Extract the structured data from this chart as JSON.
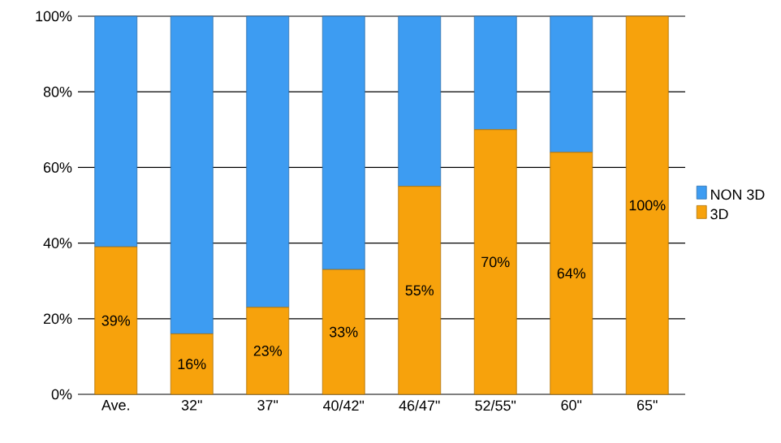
{
  "chart_data": {
    "type": "bar",
    "stacked": true,
    "categories": [
      "Ave.",
      "32\"",
      "37\"",
      "40/42\"",
      "46/47\"",
      "52/55\"",
      "60\"",
      "65\""
    ],
    "series": [
      {
        "name": "3D",
        "color": "#f7a20c",
        "values": [
          39,
          16,
          23,
          33,
          55,
          70,
          64,
          100
        ],
        "value_labels": [
          "39%",
          "16%",
          "23%",
          "33%",
          "55%",
          "70%",
          "64%",
          "100%"
        ]
      },
      {
        "name": "NON 3D",
        "color": "#3d9cf2",
        "values": [
          61,
          84,
          77,
          67,
          45,
          30,
          36,
          0
        ]
      }
    ],
    "ylim": [
      0,
      100
    ],
    "yticks": [
      {
        "value": 0,
        "label": "0%"
      },
      {
        "value": 20,
        "label": "20%"
      },
      {
        "value": 40,
        "label": "40%"
      },
      {
        "value": 60,
        "label": "60%"
      },
      {
        "value": 80,
        "label": "80%"
      },
      {
        "value": 100,
        "label": "100%"
      }
    ],
    "grid": "y",
    "legend": "right"
  }
}
